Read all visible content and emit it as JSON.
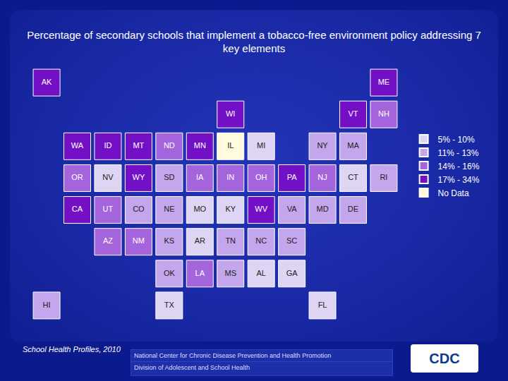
{
  "chart_data": {
    "type": "choropleth",
    "title": "Percentage of secondary schools that implement a tobacco-free environment policy addressing 7 key elements",
    "source": "School Health Profiles, 2010",
    "legend": "right",
    "tick_labels": false,
    "classes": [
      {
        "name": "5% - 10%",
        "color": "#ddd5f3"
      },
      {
        "name": "11% - 13%",
        "color": "#c4a6ec"
      },
      {
        "name": "14% - 16%",
        "color": "#a464dc"
      },
      {
        "name": "17% - 34%",
        "color": "#7310c6"
      },
      {
        "name": "No Data",
        "color": "#fffbdc"
      }
    ],
    "locations": [
      "AK",
      "ME",
      "WI",
      "VT",
      "NH",
      "WA",
      "ID",
      "MT",
      "ND",
      "MN",
      "IL",
      "MI",
      "NY",
      "MA",
      "OR",
      "NV",
      "WY",
      "SD",
      "IA",
      "IN",
      "OH",
      "PA",
      "NJ",
      "CT",
      "RI",
      "CA",
      "UT",
      "CO",
      "NE",
      "MO",
      "KY",
      "WV",
      "VA",
      "MD",
      "DE",
      "AZ",
      "NM",
      "KS",
      "AR",
      "TN",
      "NC",
      "SC",
      "OK",
      "LA",
      "MS",
      "AL",
      "GA",
      "HI",
      "TX",
      "FL"
    ],
    "values": [
      "17% - 34%",
      "17% - 34%",
      "17% - 34%",
      "17% - 34%",
      "14% - 16%",
      "17% - 34%",
      "17% - 34%",
      "17% - 34%",
      "14% - 16%",
      "17% - 34%",
      "No Data",
      "5% - 10%",
      "11% - 13%",
      "11% - 13%",
      "14% - 16%",
      "5% - 10%",
      "17% - 34%",
      "11% - 13%",
      "14% - 16%",
      "14% - 16%",
      "14% - 16%",
      "17% - 34%",
      "14% - 16%",
      "5% - 10%",
      "11% - 13%",
      "17% - 34%",
      "14% - 16%",
      "11% - 13%",
      "11% - 13%",
      "5% - 10%",
      "5% - 10%",
      "17% - 34%",
      "11% - 13%",
      "11% - 13%",
      "11% - 13%",
      "14% - 16%",
      "14% - 16%",
      "11% - 13%",
      "5% - 10%",
      "11% - 13%",
      "11% - 13%",
      "11% - 13%",
      "11% - 13%",
      "14% - 16%",
      "11% - 13%",
      "5% - 10%",
      "5% - 10%",
      "11% - 13%",
      "5% - 10%",
      "5% - 10%"
    ]
  },
  "footer": {
    "lines": [
      "National Center for Chronic Disease Prevention and Health Promotion",
      "Division of Adolescent and School Health"
    ],
    "logo": "CDC"
  }
}
